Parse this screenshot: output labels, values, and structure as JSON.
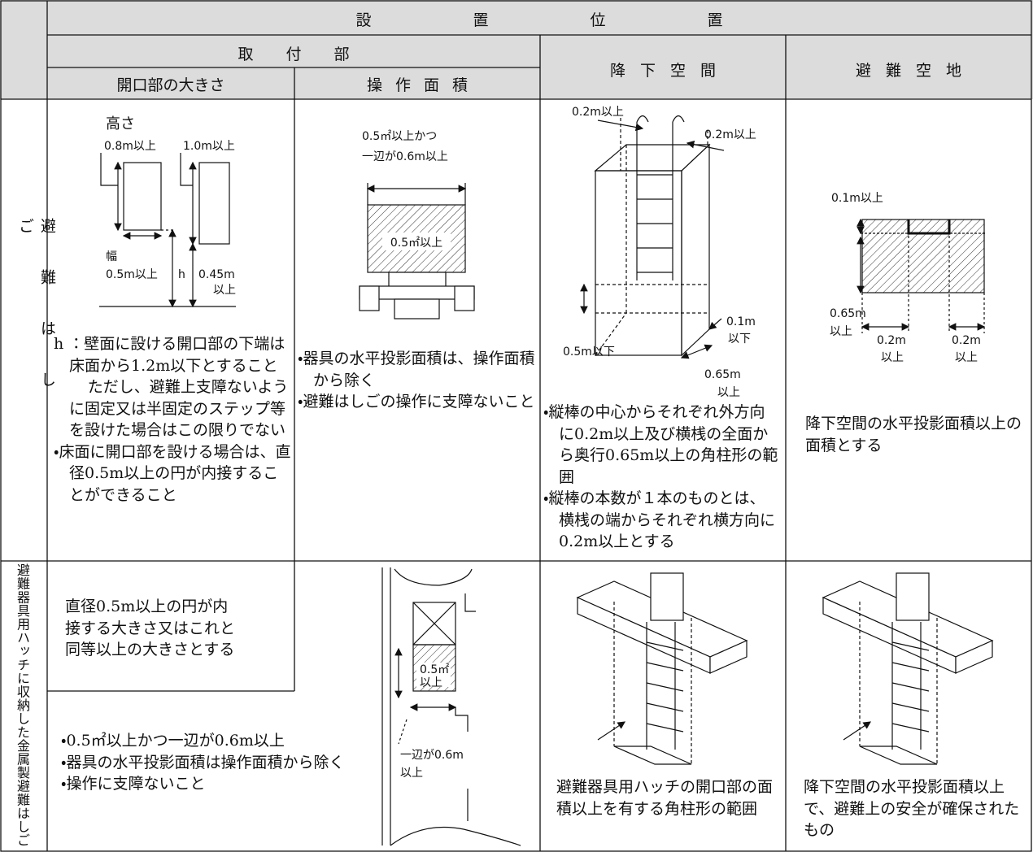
{
  "header": {
    "title": "設置位置",
    "mounting": "取付部",
    "descent_space": "降下空間",
    "evacuation_space": "避難空地",
    "opening_size": "開口部の大きさ",
    "operation_area": "操作面積"
  },
  "rows": [
    {
      "label": "避難はしご",
      "opening": {
        "labels": [
          "高さ",
          "0.8m以上",
          "1.0m以上",
          "幅",
          "0.5m以上",
          "h",
          "0.45m",
          "以上"
        ],
        "notes": [
          "h ：壁面に設ける開口部の下端は床面から1.2m以下とすること",
          "ただし、避難上支障ないように固定又は半固定のステップ等を設けた場合はこの限りでない",
          "・床面に開口部を設ける場合は、直径0.5m以上の円が内接することができること"
        ]
      },
      "operation": {
        "labels": [
          "0.5㎡以上かつ",
          "一辺が0.6m以上",
          "0.5㎡以上"
        ],
        "notes": [
          "・器具の水平投影面積は、操作面積から除く",
          "・避難はしごの操作に支障ないこと"
        ]
      },
      "descent": {
        "labels": [
          "0.2m以上",
          "0.2m以上",
          "0.1m",
          "以下",
          "0.5m以下",
          "0.65m",
          "以上"
        ],
        "notes": [
          "・縦棒の中心からそれぞれ外方向に0.2m以上及び横桟の全面から奥行0.65m以上の角柱形の範囲",
          "・縦棒の本数が１本のものとは、横桟の端からそれぞれ横方向に0.2m以上とする"
        ]
      },
      "space": {
        "labels": [
          "0.1m以上",
          "0.65m",
          "以上",
          "0.2m",
          "以上",
          "0.2m",
          "以上"
        ],
        "notes": [
          "降下空間の水平投影面積以上の面積とする"
        ]
      }
    },
    {
      "label": "避難器具用ハッチに収納した金属製避難はしご",
      "opening": {
        "lines": [
          "直径0.5m以上の円が内",
          "接する大きさ又はこれと",
          "同等以上の大きさとする"
        ]
      },
      "operation": {
        "labels": [
          "0.5㎡",
          "以上",
          "一辺が0.6m",
          "以上"
        ],
        "notes": [
          "・0.5㎡以上かつ一辺が0.6m以上",
          "・器具の水平投影面積は操作面積から除く",
          "・操作に支障ないこと"
        ]
      },
      "descent": {
        "notes": [
          "避難器具用ハッチの開口部の面積以上を有する角柱形の範囲"
        ]
      },
      "space": {
        "notes": [
          "降下空間の水平投影面積以上で、避難上の安全が確保されたもの"
        ]
      }
    }
  ]
}
